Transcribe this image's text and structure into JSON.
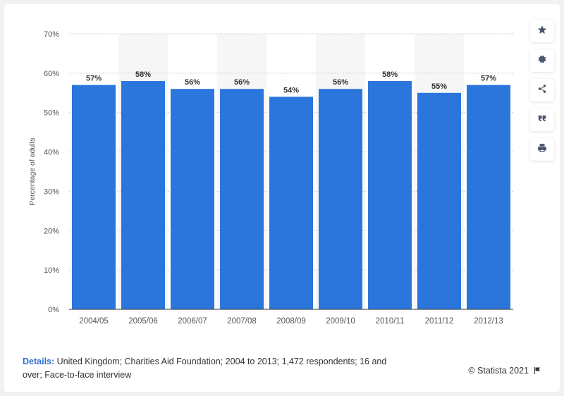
{
  "chart_data": {
    "type": "bar",
    "categories": [
      "2004/05",
      "2005/06",
      "2006/07",
      "2007/08",
      "2008/09",
      "2009/10",
      "2010/11",
      "2011/12",
      "2012/13"
    ],
    "values": [
      57,
      58,
      56,
      56,
      54,
      56,
      58,
      55,
      57
    ],
    "data_labels": [
      "57%",
      "58%",
      "56%",
      "56%",
      "54%",
      "56%",
      "58%",
      "55%",
      "57%"
    ],
    "ylabel": "Percentage of adults",
    "ylim": [
      0,
      70
    ],
    "yticks": [
      "0%",
      "10%",
      "20%",
      "30%",
      "40%",
      "50%",
      "60%",
      "70%"
    ],
    "grid": true,
    "bar_color": "#2a76dd"
  },
  "footer": {
    "details_label": "Details:",
    "details_text": "United Kingdom; Charities Aid Foundation; 2004 to 2013; 1,472 respondents; 16 and over; Face-to-face interview",
    "credit": "© Statista 2021"
  },
  "toolbar": {
    "icons": [
      "star-icon",
      "gear-icon",
      "share-icon",
      "quote-icon",
      "print-icon"
    ]
  }
}
